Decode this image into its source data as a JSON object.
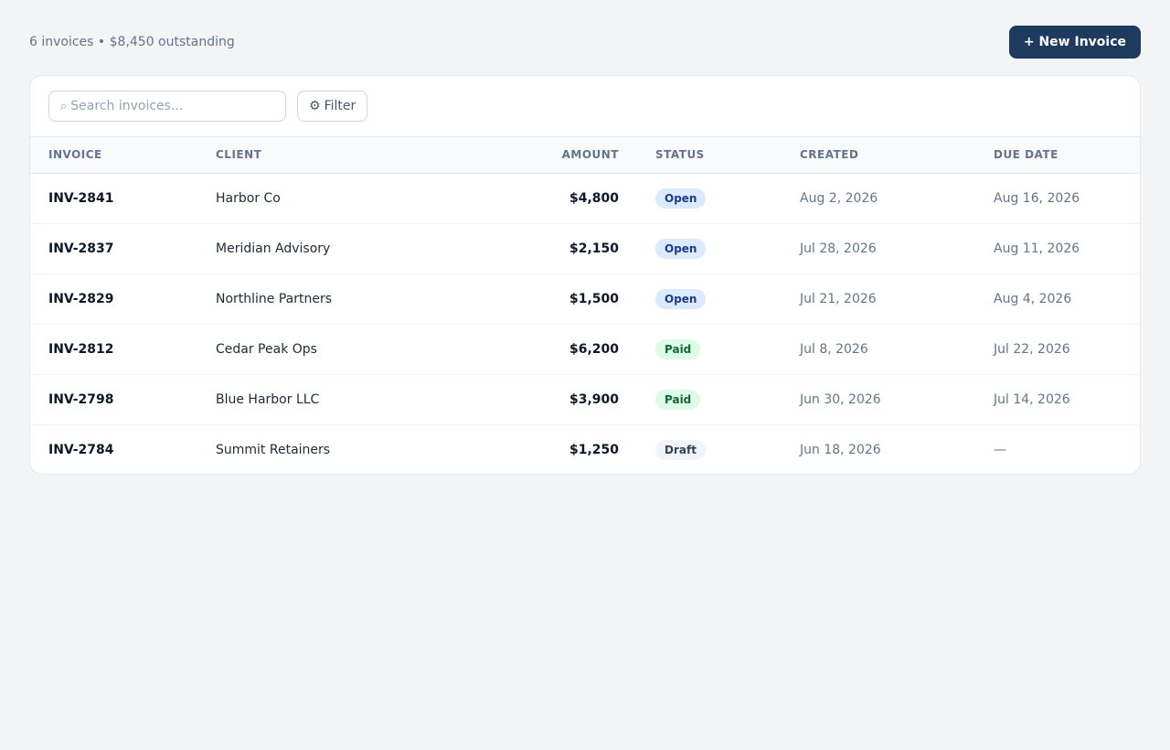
{
  "header": {
    "summary": "6 invoices • $8,450 outstanding",
    "new_invoice_label": "+ New Invoice"
  },
  "toolbar": {
    "search_icon": "⌕",
    "search_placeholder": "Search invoices...",
    "search_value": "",
    "filter_icon": "⚙",
    "filter_label": "Filter"
  },
  "table": {
    "columns": [
      "INVOICE",
      "CLIENT",
      "AMOUNT",
      "STATUS",
      "CREATED",
      "DUE DATE"
    ],
    "rows": [
      {
        "id": "INV-2841",
        "client": "Harbor Co",
        "amount": "$4,800",
        "status": "Open",
        "created": "Aug 2, 2026",
        "due": "Aug 16, 2026"
      },
      {
        "id": "INV-2837",
        "client": "Meridian Advisory",
        "amount": "$2,150",
        "status": "Open",
        "created": "Jul 28, 2026",
        "due": "Aug 11, 2026"
      },
      {
        "id": "INV-2829",
        "client": "Northline Partners",
        "amount": "$1,500",
        "status": "Open",
        "created": "Jul 21, 2026",
        "due": "Aug 4, 2026"
      },
      {
        "id": "INV-2812",
        "client": "Cedar Peak Ops",
        "amount": "$6,200",
        "status": "Paid",
        "created": "Jul 8, 2026",
        "due": "Jul 22, 2026"
      },
      {
        "id": "INV-2798",
        "client": "Blue Harbor LLC",
        "amount": "$3,900",
        "status": "Paid",
        "created": "Jun 30, 2026",
        "due": "Jul 14, 2026"
      },
      {
        "id": "INV-2784",
        "client": "Summit Retainers",
        "amount": "$1,250",
        "status": "Draft",
        "created": "Jun 18, 2026",
        "due": "—"
      }
    ]
  },
  "colors": {
    "primary": "#1e3a5f",
    "open_bg": "#dbeafe",
    "open_text": "#1e3a8a",
    "paid_bg": "#dcfce7",
    "paid_text": "#166534",
    "draft_bg": "#f1f5f9",
    "draft_text": "#334155"
  }
}
